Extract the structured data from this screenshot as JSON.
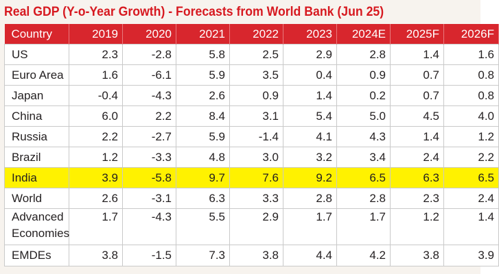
{
  "title": "Real GDP (Y-o-Year Growth) - Forecasts from World Bank (Jun 25)",
  "colors": {
    "title": "#d71920",
    "header_bg": "#d8262d",
    "highlight": "#fff200"
  },
  "table": {
    "headers": [
      "Country",
      "2019",
      "2020",
      "2021",
      "2022",
      "2023",
      "2024E",
      "2025F",
      "2026F"
    ],
    "rows": [
      {
        "country": "US",
        "values": [
          "2.3",
          "-2.8",
          "5.8",
          "2.5",
          "2.9",
          "2.8",
          "1.4",
          "1.6"
        ]
      },
      {
        "country": "Euro Area",
        "values": [
          "1.6",
          "-6.1",
          "5.9",
          "3.5",
          "0.4",
          "0.9",
          "0.7",
          "0.8"
        ]
      },
      {
        "country": "Japan",
        "values": [
          "-0.4",
          "-4.3",
          "2.6",
          "0.9",
          "1.4",
          "0.2",
          "0.7",
          "0.8"
        ]
      },
      {
        "country": "China",
        "values": [
          "6.0",
          "2.2",
          "8.4",
          "3.1",
          "5.4",
          "5.0",
          "4.5",
          "4.0"
        ]
      },
      {
        "country": "Russia",
        "values": [
          "2.2",
          "-2.7",
          "5.9",
          "-1.4",
          "4.1",
          "4.3",
          "1.4",
          "1.2"
        ]
      },
      {
        "country": "Brazil",
        "values": [
          "1.2",
          "-3.3",
          "4.8",
          "3.0",
          "3.2",
          "3.4",
          "2.4",
          "2.2"
        ]
      },
      {
        "country": "India",
        "values": [
          "3.9",
          "-5.8",
          "9.7",
          "7.6",
          "9.2",
          "6.5",
          "6.3",
          "6.5"
        ],
        "highlight": true
      },
      {
        "country": "World",
        "values": [
          "2.6",
          "-3.1",
          "6.3",
          "3.3",
          "2.8",
          "2.8",
          "2.3",
          "2.4"
        ]
      },
      {
        "country": "Advanced Economies",
        "values": [
          "1.7",
          "-4.3",
          "5.5",
          "2.9",
          "1.7",
          "1.7",
          "1.2",
          "1.4"
        ]
      },
      {
        "country": "EMDEs",
        "values": [
          "3.8",
          "-1.5",
          "7.3",
          "3.8",
          "4.4",
          "4.2",
          "3.8",
          "3.9"
        ]
      }
    ]
  }
}
